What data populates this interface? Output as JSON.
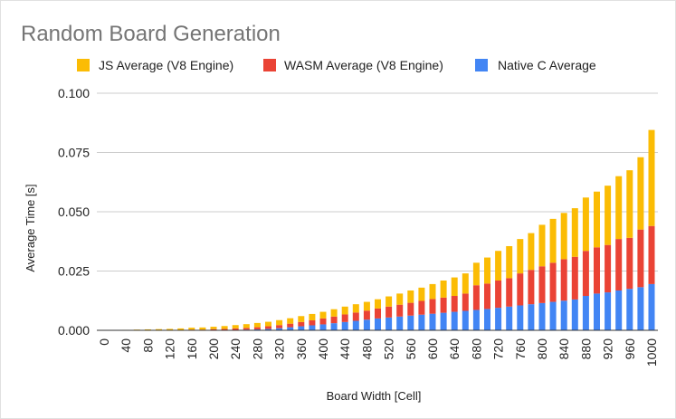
{
  "chart_data": {
    "type": "bar",
    "stacked": true,
    "title": "Random Board Generation",
    "xlabel": "Board Width [Cell]",
    "ylabel": "Average Time [s]",
    "ylim": [
      0,
      0.1
    ],
    "y_ticks": [
      "0.000",
      "0.025",
      "0.050",
      "0.075",
      "0.100"
    ],
    "x_tick_labels": [
      "0",
      "40",
      "80",
      "120",
      "160",
      "200",
      "240",
      "280",
      "320",
      "360",
      "400",
      "440",
      "480",
      "520",
      "560",
      "600",
      "640",
      "680",
      "720",
      "760",
      "800",
      "840",
      "880",
      "920",
      "960",
      "1000"
    ],
    "grid": true,
    "legend_position": "top",
    "categories": [
      0,
      20,
      40,
      60,
      80,
      100,
      120,
      140,
      160,
      180,
      200,
      220,
      240,
      260,
      280,
      300,
      320,
      340,
      360,
      380,
      400,
      420,
      440,
      460,
      480,
      500,
      520,
      540,
      560,
      580,
      600,
      620,
      640,
      660,
      680,
      700,
      720,
      740,
      760,
      780,
      800,
      820,
      840,
      860,
      880,
      900,
      920,
      940,
      960,
      980,
      1000
    ],
    "series": [
      {
        "name": "Native C Average",
        "color": "#4285f4",
        "values": [
          0,
          0,
          0,
          0,
          0,
          0,
          0,
          0,
          0,
          0,
          0.0001,
          0.0001,
          0.0002,
          0.0003,
          0.0004,
          0.0006,
          0.0009,
          0.0013,
          0.0017,
          0.0021,
          0.0025,
          0.003,
          0.0035,
          0.004,
          0.0045,
          0.005,
          0.0054,
          0.0058,
          0.0062,
          0.0066,
          0.007,
          0.0074,
          0.0078,
          0.0082,
          0.0086,
          0.009,
          0.0095,
          0.01,
          0.0105,
          0.011,
          0.0115,
          0.012,
          0.0125,
          0.013,
          0.0145,
          0.0155,
          0.016,
          0.0168,
          0.0175,
          0.0182,
          0.0195
        ]
      },
      {
        "name": "WASM Average (V8 Engine)",
        "color": "#ea4335",
        "values": [
          0,
          0,
          0,
          0.0001,
          0.0001,
          0.0001,
          0.0001,
          0.0002,
          0.0003,
          0.0003,
          0.0004,
          0.0005,
          0.0006,
          0.0007,
          0.0009,
          0.0011,
          0.0013,
          0.0015,
          0.0018,
          0.0021,
          0.0025,
          0.0028,
          0.0032,
          0.0035,
          0.0038,
          0.0042,
          0.0046,
          0.005,
          0.0054,
          0.0058,
          0.0062,
          0.0064,
          0.0067,
          0.0073,
          0.0104,
          0.0107,
          0.0115,
          0.012,
          0.0135,
          0.0145,
          0.0155,
          0.0165,
          0.0175,
          0.018,
          0.019,
          0.0195,
          0.02,
          0.0217,
          0.0215,
          0.0243,
          0.0245
        ]
      },
      {
        "name": "JS Average (V8 Engine)",
        "color": "#fbbc04",
        "values": [
          0,
          0,
          0.0002,
          0.0002,
          0.0003,
          0.0004,
          0.0005,
          0.0006,
          0.0008,
          0.0009,
          0.001,
          0.0012,
          0.0014,
          0.0016,
          0.0018,
          0.0019,
          0.0021,
          0.0023,
          0.0025,
          0.0027,
          0.0028,
          0.0031,
          0.0033,
          0.0035,
          0.0037,
          0.0039,
          0.0043,
          0.0047,
          0.0052,
          0.0056,
          0.0063,
          0.0072,
          0.0078,
          0.0085,
          0.0095,
          0.011,
          0.0125,
          0.0135,
          0.0145,
          0.0155,
          0.0175,
          0.0185,
          0.0195,
          0.0205,
          0.0225,
          0.0235,
          0.025,
          0.0265,
          0.0285,
          0.0305,
          0.0405
        ]
      }
    ]
  }
}
